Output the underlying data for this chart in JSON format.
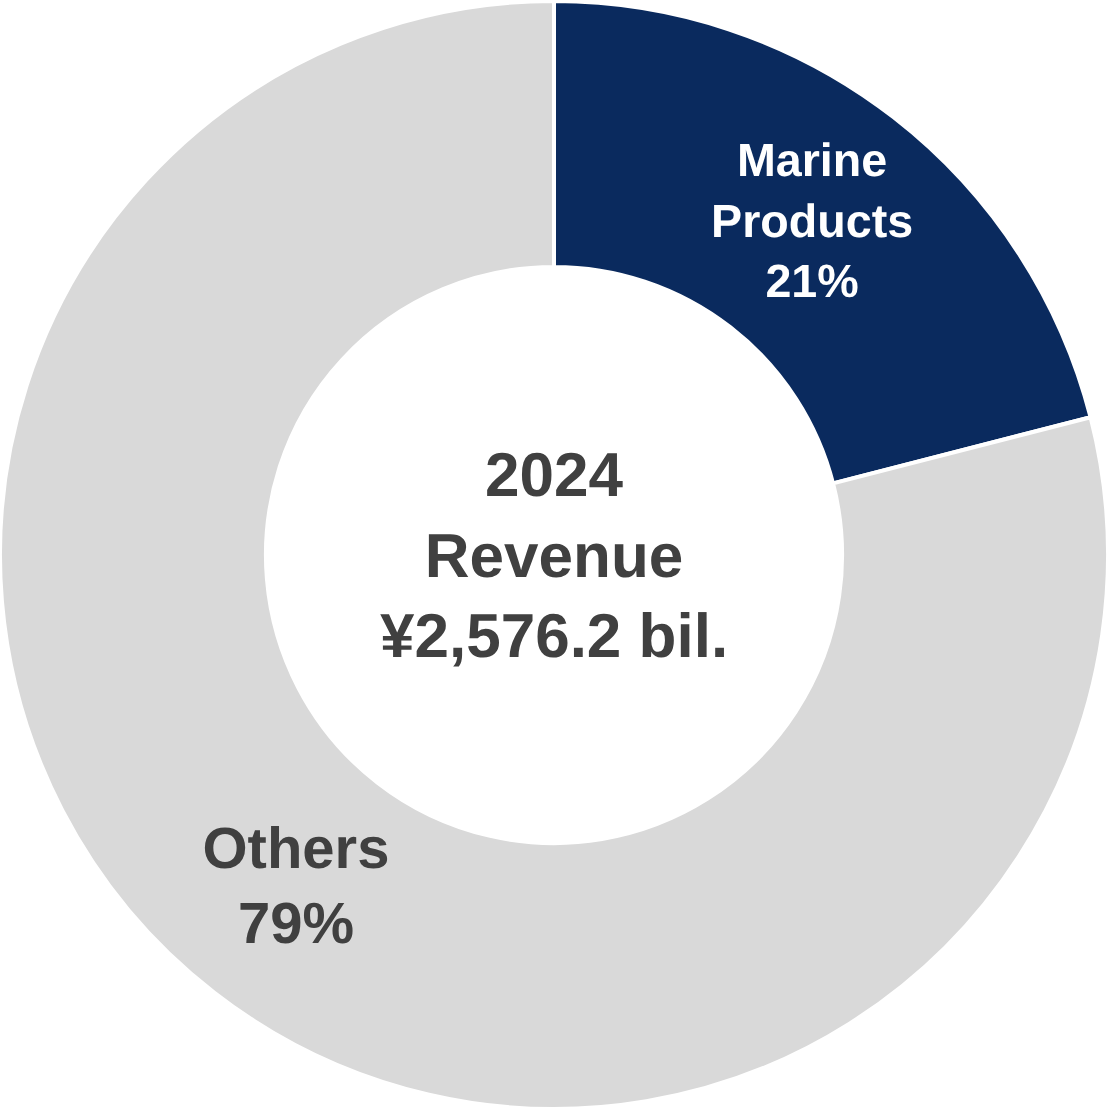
{
  "chart_data": {
    "type": "donut",
    "categories": [
      "Marine Products",
      "Others"
    ],
    "values": [
      21,
      79
    ],
    "colors": [
      "#0a2a5e",
      "#d9d9d9"
    ],
    "value_labels": [
      "21%",
      "79%"
    ],
    "legend": false,
    "annotations": [
      "2024\nRevenue\n¥2,576.2 bil."
    ]
  }
}
